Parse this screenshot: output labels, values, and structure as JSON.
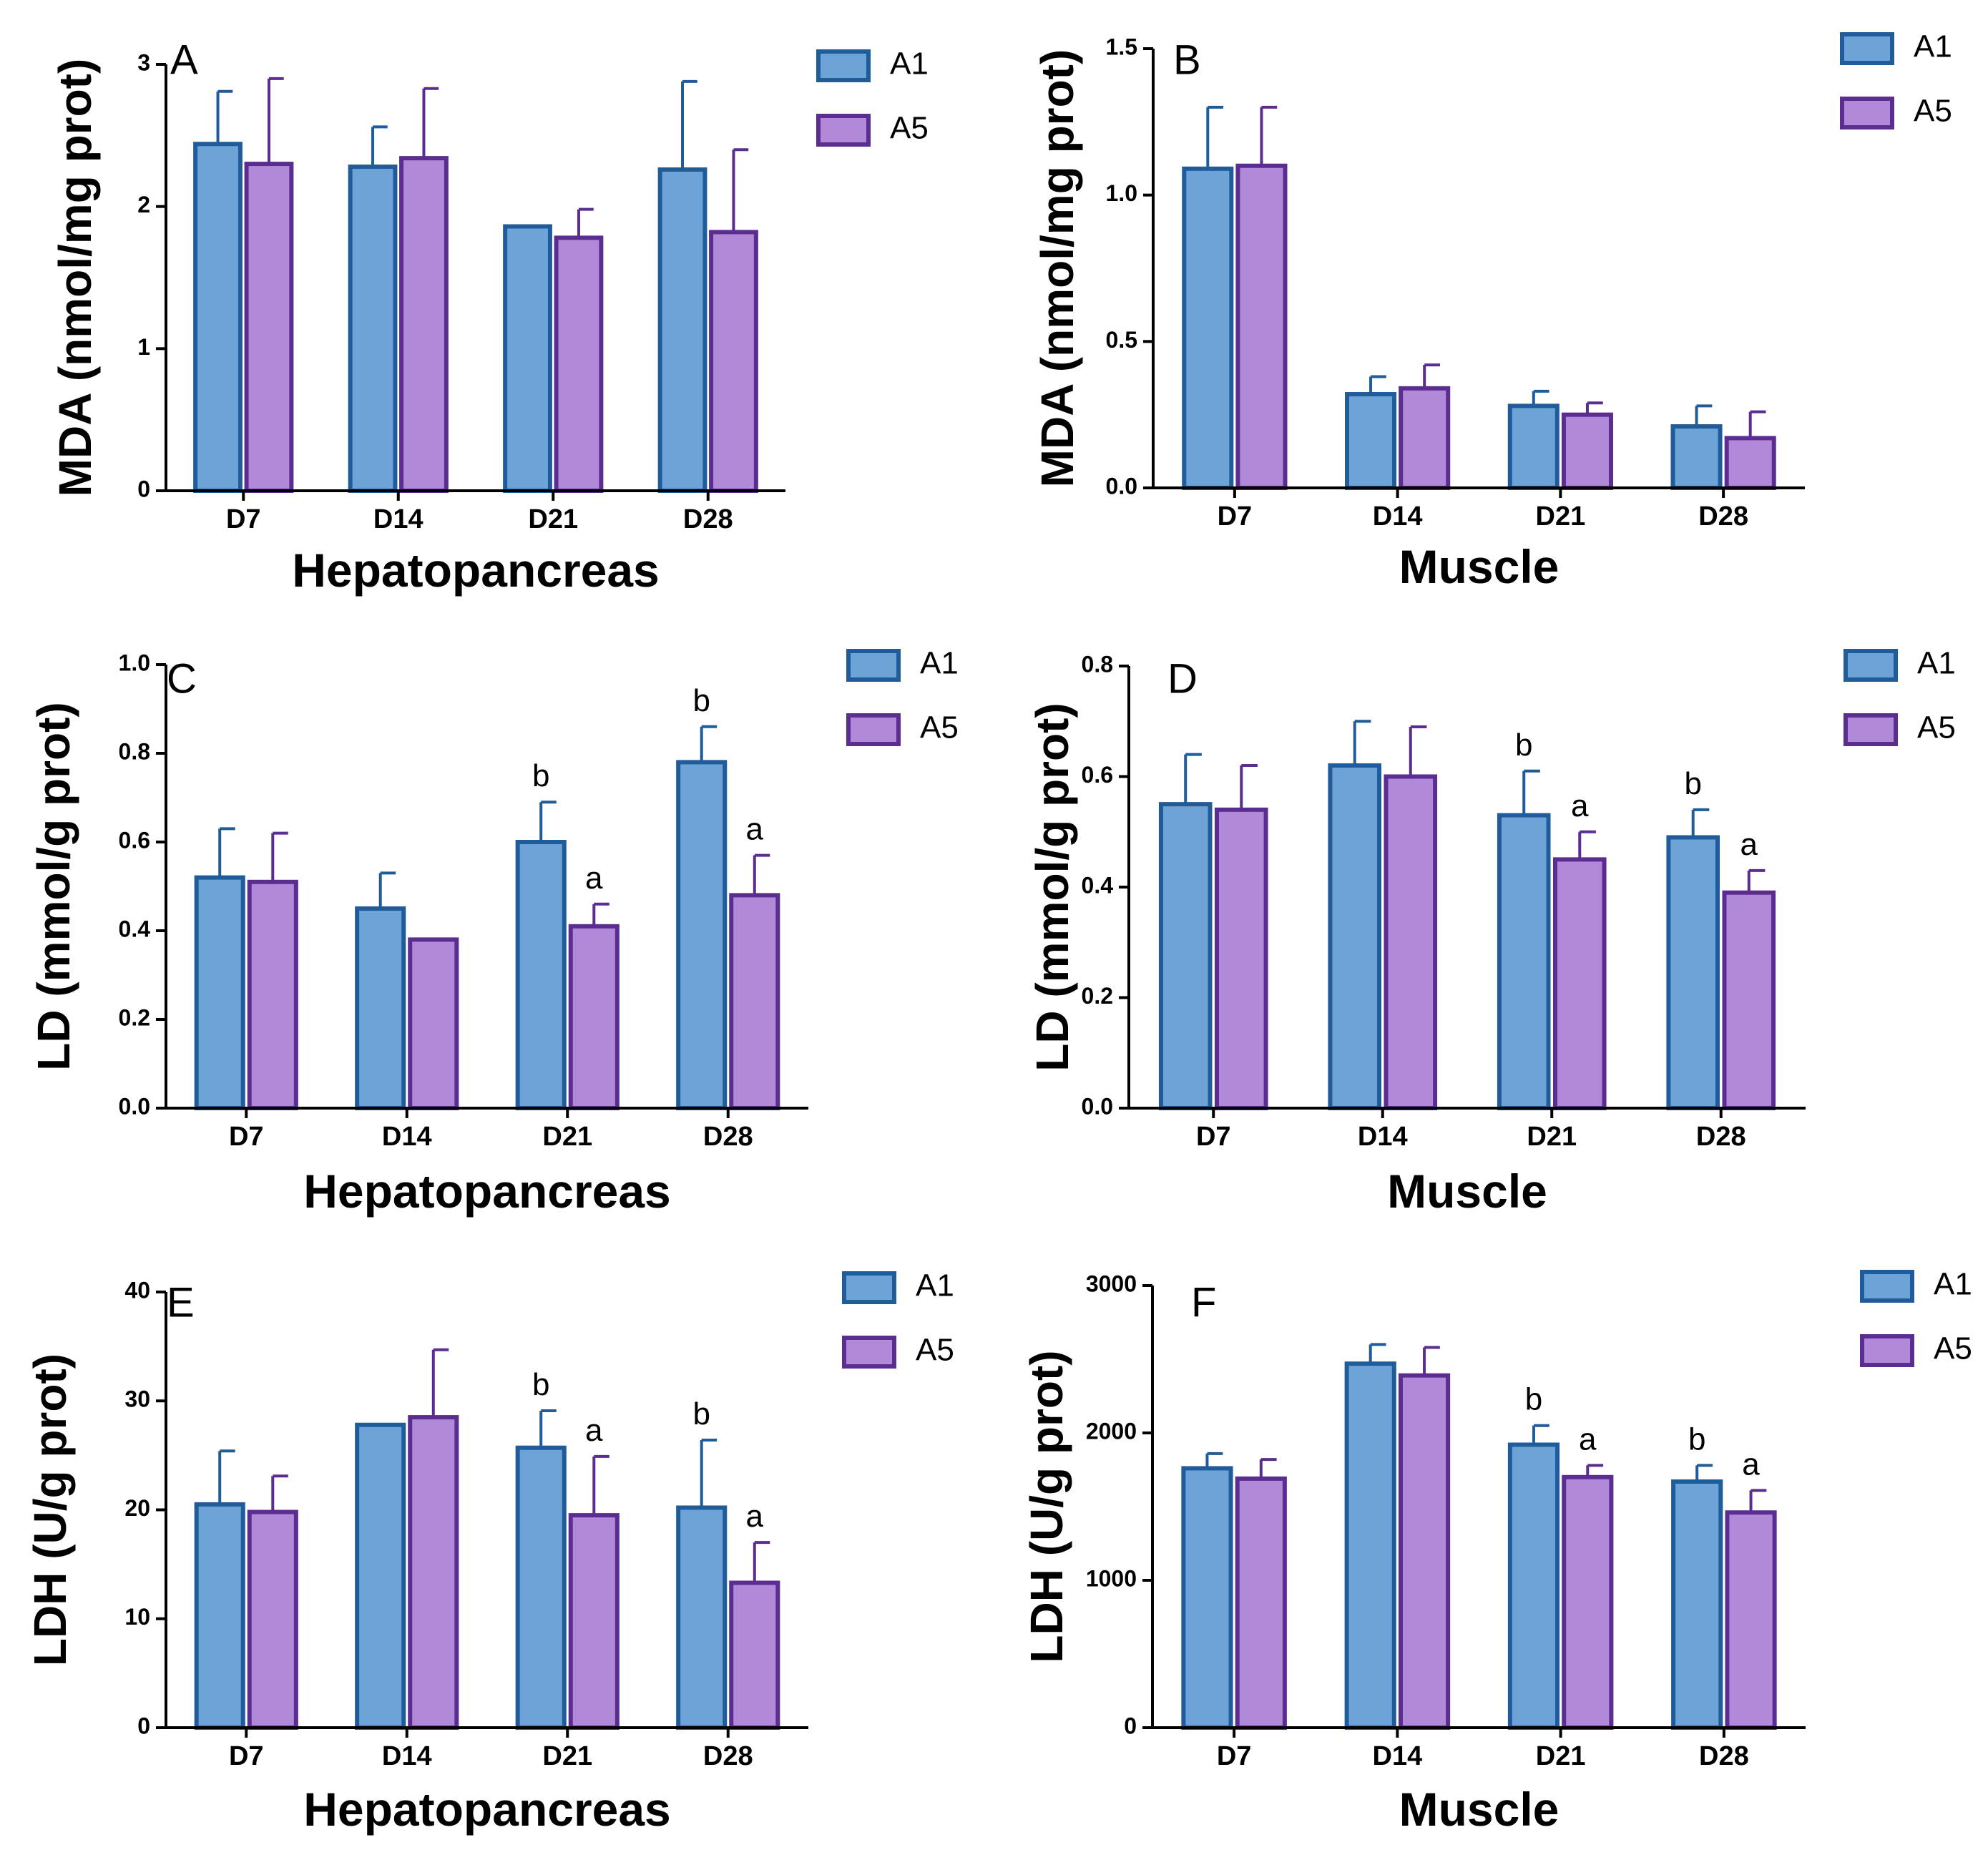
{
  "figure": {
    "colors": {
      "A1_fill": "#6ea3d8",
      "A1_edge": "#1f5c99",
      "A5_fill": "#b08ad9",
      "A5_edge": "#5b2d91",
      "axis": "#000000"
    }
  },
  "chart_data": [
    {
      "type": "bar",
      "panel": "A",
      "categories": [
        "D7",
        "D14",
        "D21",
        "D28"
      ],
      "series": [
        {
          "name": "A1",
          "values": [
            2.44,
            2.28,
            1.86,
            2.26
          ],
          "errors": [
            0.37,
            0.28,
            0.0,
            0.62
          ],
          "sig": [
            "",
            "",
            "",
            ""
          ]
        },
        {
          "name": "A5",
          "values": [
            2.3,
            2.34,
            1.78,
            1.82
          ],
          "errors": [
            0.6,
            0.49,
            0.2,
            0.58
          ],
          "sig": [
            "",
            "",
            "",
            ""
          ]
        }
      ],
      "ylabel": "MDA (nmol/mg prot)",
      "xlabel": "Hepatopancreas",
      "ylim": [
        0,
        3
      ],
      "yticks": [
        0,
        1,
        2,
        3
      ],
      "ytick_labels": [
        "0",
        "1",
        "2",
        "3"
      ],
      "legend": [
        "A1",
        "A5"
      ]
    },
    {
      "type": "bar",
      "panel": "B",
      "categories": [
        "D7",
        "D14",
        "D21",
        "D28"
      ],
      "series": [
        {
          "name": "A1",
          "values": [
            1.09,
            0.32,
            0.28,
            0.21
          ],
          "errors": [
            0.21,
            0.06,
            0.05,
            0.07
          ],
          "sig": [
            "",
            "",
            "",
            ""
          ]
        },
        {
          "name": "A5",
          "values": [
            1.1,
            0.34,
            0.25,
            0.17
          ],
          "errors": [
            0.2,
            0.08,
            0.04,
            0.09
          ],
          "sig": [
            "",
            "",
            "",
            ""
          ]
        }
      ],
      "ylabel": "MDA (nmol/mg prot)",
      "xlabel": "Muscle",
      "ylim": [
        0,
        1.5
      ],
      "yticks": [
        0,
        0.5,
        1.0,
        1.5
      ],
      "ytick_labels": [
        "0.0",
        "0.5",
        "1.0",
        "1.5"
      ],
      "legend": [
        "A1",
        "A5"
      ]
    },
    {
      "type": "bar",
      "panel": "C",
      "categories": [
        "D7",
        "D14",
        "D21",
        "D28"
      ],
      "series": [
        {
          "name": "A1",
          "values": [
            0.52,
            0.45,
            0.6,
            0.78
          ],
          "errors": [
            0.11,
            0.08,
            0.09,
            0.08
          ],
          "sig": [
            "",
            "",
            "b",
            "b"
          ]
        },
        {
          "name": "A5",
          "values": [
            0.51,
            0.38,
            0.41,
            0.48
          ],
          "errors": [
            0.11,
            0.0,
            0.05,
            0.09
          ],
          "sig": [
            "",
            "",
            "a",
            "a"
          ]
        }
      ],
      "ylabel": "LD (mmol/g prot)",
      "xlabel": "Hepatopancreas",
      "ylim": [
        0,
        1.0
      ],
      "yticks": [
        0,
        0.2,
        0.4,
        0.6,
        0.8,
        1.0
      ],
      "ytick_labels": [
        "0.0",
        "0.2",
        "0.4",
        "0.6",
        "0.8",
        "1.0"
      ],
      "legend": [
        "A1",
        "A5"
      ]
    },
    {
      "type": "bar",
      "panel": "D",
      "categories": [
        "D7",
        "D14",
        "D21",
        "D28"
      ],
      "series": [
        {
          "name": "A1",
          "values": [
            0.55,
            0.62,
            0.53,
            0.49
          ],
          "errors": [
            0.09,
            0.08,
            0.08,
            0.05
          ],
          "sig": [
            "",
            "",
            "b",
            "b"
          ]
        },
        {
          "name": "A5",
          "values": [
            0.54,
            0.6,
            0.45,
            0.39
          ],
          "errors": [
            0.08,
            0.09,
            0.05,
            0.04
          ],
          "sig": [
            "",
            "",
            "a",
            "a"
          ]
        }
      ],
      "ylabel": "LD (mmol/g prot)",
      "xlabel": "Muscle",
      "ylim": [
        0,
        0.8
      ],
      "yticks": [
        0,
        0.2,
        0.4,
        0.6,
        0.8
      ],
      "ytick_labels": [
        "0.0",
        "0.2",
        "0.4",
        "0.6",
        "0.8"
      ],
      "legend": [
        "A1",
        "A5"
      ]
    },
    {
      "type": "bar",
      "panel": "E",
      "categories": [
        "D7",
        "D14",
        "D21",
        "D28"
      ],
      "series": [
        {
          "name": "A1",
          "values": [
            20.5,
            27.8,
            25.7,
            20.2
          ],
          "errors": [
            4.9,
            0.0,
            3.4,
            6.2
          ],
          "sig": [
            "",
            "",
            "b",
            "b"
          ]
        },
        {
          "name": "A5",
          "values": [
            19.8,
            28.5,
            19.5,
            13.3
          ],
          "errors": [
            3.3,
            6.2,
            5.4,
            3.7
          ],
          "sig": [
            "",
            "",
            "a",
            "a"
          ]
        }
      ],
      "ylabel": "LDH (U/g prot)",
      "xlabel": "Hepatopancreas",
      "ylim": [
        0,
        40
      ],
      "yticks": [
        0,
        10,
        20,
        30,
        40
      ],
      "ytick_labels": [
        "0",
        "10",
        "20",
        "30",
        "40"
      ],
      "legend": [
        "A1",
        "A5"
      ]
    },
    {
      "type": "bar",
      "panel": "F",
      "categories": [
        "D7",
        "D14",
        "D21",
        "D28"
      ],
      "series": [
        {
          "name": "A1",
          "values": [
            1760,
            2470,
            1920,
            1670
          ],
          "errors": [
            100,
            130,
            130,
            110
          ],
          "sig": [
            "",
            "",
            "b",
            "b"
          ]
        },
        {
          "name": "A5",
          "values": [
            1690,
            2390,
            1700,
            1460
          ],
          "errors": [
            130,
            190,
            80,
            150
          ],
          "sig": [
            "",
            "",
            "a",
            "a"
          ]
        }
      ],
      "ylabel": "LDH (U/g prot)",
      "xlabel": "Muscle",
      "ylim": [
        0,
        3000
      ],
      "yticks": [
        0,
        1000,
        2000,
        3000
      ],
      "ytick_labels": [
        "0",
        "1000",
        "2000",
        "3000"
      ],
      "legend": [
        "A1",
        "A5"
      ]
    }
  ]
}
